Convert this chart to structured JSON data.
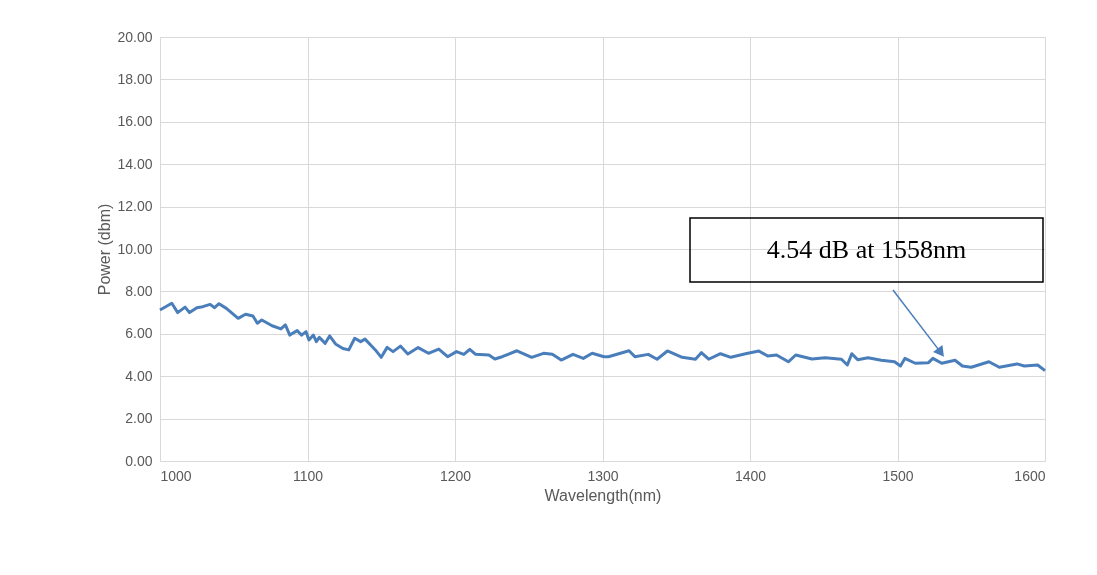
{
  "chart_data": {
    "type": "line",
    "xlabel": "Wavelength(nm)",
    "ylabel": "Power (dbm)",
    "xlim": [
      1000,
      1600
    ],
    "xticks": [
      1000,
      1100,
      1200,
      1300,
      1400,
      1500,
      1600
    ],
    "ylim": [
      0,
      20
    ],
    "yticks": [
      {
        "value": 0,
        "label": "0.00"
      },
      {
        "value": 2,
        "label": "2.00"
      },
      {
        "value": 4,
        "label": "4.00"
      },
      {
        "value": 6,
        "label": "6.00"
      },
      {
        "value": 8,
        "label": "8.00"
      },
      {
        "value": 10,
        "label": "10.00"
      },
      {
        "value": 12,
        "label": "12.00"
      },
      {
        "value": 14,
        "label": "14.00"
      },
      {
        "value": 16,
        "label": "16.00"
      },
      {
        "value": 18,
        "label": "18.00"
      },
      {
        "value": 20,
        "label": "20.00"
      }
    ],
    "grid": true,
    "marker": "none",
    "line_style": "solid",
    "annotations": [
      "4.54 dB at 1558nm"
    ],
    "series": [
      {
        "color": "#4a7ebb",
        "x": [
          1000,
          1008,
          1012,
          1017,
          1020,
          1025,
          1029,
          1034,
          1037,
          1040,
          1045,
          1053,
          1058,
          1063,
          1066,
          1069,
          1076,
          1082,
          1085,
          1088,
          1093,
          1096,
          1099,
          1101,
          1104,
          1106,
          1108,
          1112,
          1115,
          1119,
          1124,
          1128,
          1132,
          1136,
          1139,
          1146,
          1150,
          1154,
          1158,
          1163,
          1168,
          1175,
          1182,
          1189,
          1195,
          1201,
          1206,
          1210,
          1214,
          1223,
          1227,
          1232,
          1242,
          1252,
          1260,
          1266,
          1272,
          1280,
          1287,
          1293,
          1301,
          1304,
          1318,
          1322,
          1331,
          1337,
          1344,
          1354,
          1363,
          1367,
          1372,
          1380,
          1387,
          1397,
          1406,
          1412,
          1418,
          1426,
          1431,
          1442,
          1451,
          1462,
          1466,
          1469,
          1473,
          1480,
          1489,
          1498,
          1502,
          1505,
          1512,
          1521,
          1524,
          1530,
          1539,
          1544,
          1550,
          1562,
          1569,
          1581,
          1586,
          1595,
          1600
        ],
        "values": [
          7.12,
          7.44,
          7.0,
          7.26,
          7.0,
          7.23,
          7.28,
          7.39,
          7.23,
          7.42,
          7.2,
          6.73,
          6.92,
          6.84,
          6.5,
          6.65,
          6.38,
          6.23,
          6.42,
          5.94,
          6.15,
          5.94,
          6.1,
          5.71,
          5.94,
          5.63,
          5.83,
          5.55,
          5.9,
          5.52,
          5.31,
          5.24,
          5.79,
          5.63,
          5.75,
          5.24,
          4.89,
          5.36,
          5.16,
          5.42,
          5.05,
          5.35,
          5.08,
          5.28,
          4.92,
          5.16,
          5.03,
          5.27,
          5.03,
          5.0,
          4.81,
          4.92,
          5.2,
          4.89,
          5.08,
          5.03,
          4.76,
          5.03,
          4.84,
          5.08,
          4.92,
          4.92,
          5.2,
          4.92,
          5.03,
          4.8,
          5.19,
          4.89,
          4.8,
          5.11,
          4.8,
          5.06,
          4.89,
          5.06,
          5.19,
          4.95,
          5.0,
          4.68,
          5.0,
          4.81,
          4.87,
          4.8,
          4.53,
          5.06,
          4.78,
          4.87,
          4.75,
          4.68,
          4.48,
          4.84,
          4.61,
          4.64,
          4.84,
          4.61,
          4.75,
          4.48,
          4.42,
          4.68,
          4.42,
          4.58,
          4.48,
          4.53,
          4.26
        ]
      }
    ]
  }
}
